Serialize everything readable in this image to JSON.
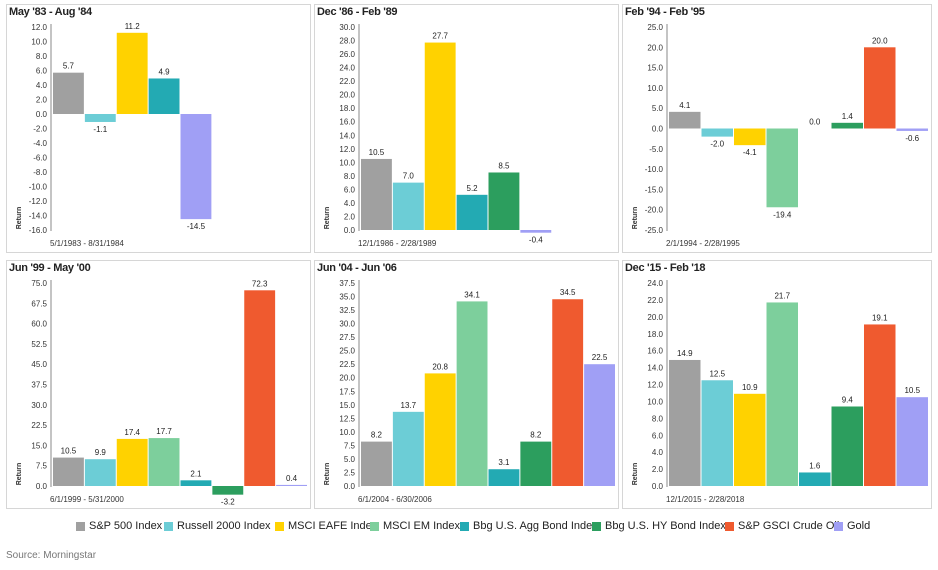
{
  "series_colors": [
    "#a0a0a0",
    "#6ccdd6",
    "#ffd200",
    "#7dcf9c",
    "#23aab3",
    "#2c9e5e",
    "#ef5a2f",
    "#a09ff5"
  ],
  "legend": [
    "S&P 500 Index",
    "Russell 2000 Index",
    "MSCI EAFE Index",
    "MSCI EM Index",
    "Bbg U.S. Agg Bond Index",
    "Bbg U.S. HY Bond Index",
    "S&P GSCI Crude Oil",
    "Gold"
  ],
  "source": "Source: Morningstar",
  "chart_data": [
    {
      "type": "bar",
      "title": "May '83 - Aug '84",
      "ylabel": "Return",
      "date_range": "5/1/1983 - 8/31/1984",
      "ylim": [
        -16,
        12
      ],
      "ytick_step": 2,
      "tick_decimals": 1,
      "series_indices": [
        0,
        1,
        2,
        4,
        7
      ],
      "values": [
        5.7,
        -1.1,
        11.2,
        4.9,
        -14.5
      ],
      "labels": [
        "5.7",
        "-1.1",
        "11.2",
        "4.9",
        "-14.5"
      ]
    },
    {
      "type": "bar",
      "title": "Dec '86 - Feb '89",
      "ylabel": "Return",
      "date_range": "12/1/1986 - 2/28/1989",
      "ylim": [
        0,
        30
      ],
      "ytick_step": 2,
      "tick_decimals": 1,
      "series_indices": [
        0,
        1,
        2,
        4,
        5,
        7
      ],
      "values": [
        10.5,
        7.0,
        27.7,
        5.2,
        8.5,
        -0.4
      ],
      "labels": [
        "10.5",
        "7.0",
        "27.7",
        "5.2",
        "8.5",
        "-0.4"
      ]
    },
    {
      "type": "bar",
      "title": "Feb '94 - Feb '95",
      "ylabel": "Return",
      "date_range": "2/1/1994 - 2/28/1995",
      "ylim": [
        -25,
        25
      ],
      "ytick_step": 5,
      "tick_decimals": 1,
      "series_indices": [
        0,
        1,
        2,
        3,
        4,
        5,
        6,
        7
      ],
      "values": [
        4.1,
        -2.0,
        -4.1,
        -19.4,
        0.0,
        1.4,
        20.0,
        -0.6
      ],
      "labels": [
        "4.1",
        "-2.0",
        "-4.1",
        "-19.4",
        "0.0",
        "1.4",
        "20.0",
        "-0.6"
      ]
    },
    {
      "type": "bar",
      "title": "Jun '99 - May '00",
      "ylabel": "Return",
      "date_range": "6/1/1999 - 5/31/2000",
      "ylim": [
        0,
        75
      ],
      "ytick_step": 7.5,
      "tick_decimals": 1,
      "series_indices": [
        0,
        1,
        2,
        3,
        4,
        5,
        6,
        7
      ],
      "values": [
        10.5,
        9.9,
        17.4,
        17.7,
        2.1,
        -3.2,
        72.3,
        0.4
      ],
      "labels": [
        "10.5",
        "9.9",
        "17.4",
        "17.7",
        "2.1",
        "-3.2",
        "72.3",
        "0.4"
      ]
    },
    {
      "type": "bar",
      "title": "Jun '04 - Jun '06",
      "ylabel": "Return",
      "date_range": "6/1/2004 - 6/30/2006",
      "ylim": [
        0,
        37.5
      ],
      "ytick_step": 2.5,
      "tick_decimals": 1,
      "series_indices": [
        0,
        1,
        2,
        3,
        4,
        5,
        6,
        7
      ],
      "values": [
        8.2,
        13.7,
        20.8,
        34.1,
        3.1,
        8.2,
        34.5,
        22.5
      ],
      "labels": [
        "8.2",
        "13.7",
        "20.8",
        "34.1",
        "3.1",
        "8.2",
        "34.5",
        "22.5"
      ]
    },
    {
      "type": "bar",
      "title": "Dec '15 - Feb '18",
      "ylabel": "Return",
      "date_range": "12/1/2015 - 2/28/2018",
      "ylim": [
        0,
        24
      ],
      "ytick_step": 2,
      "tick_decimals": 1,
      "series_indices": [
        0,
        1,
        2,
        3,
        4,
        5,
        6,
        7
      ],
      "values": [
        14.9,
        12.5,
        10.9,
        21.7,
        1.6,
        9.4,
        19.1,
        10.5
      ],
      "labels": [
        "14.9",
        "12.5",
        "10.9",
        "21.7",
        "1.6",
        "9.4",
        "19.1",
        "10.5"
      ]
    }
  ]
}
